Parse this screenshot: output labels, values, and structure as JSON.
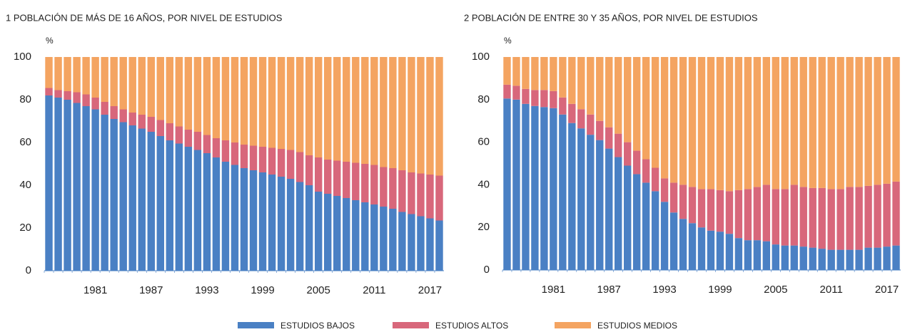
{
  "chart_data": [
    {
      "type": "stacked_bar",
      "title": "1  POBLACIÓN DE MÁS DE 16 AÑOS, POR NIVEL DE ESTUDIOS",
      "y_unit": "%",
      "categories": [
        null,
        null,
        null,
        null,
        null,
        "1981",
        null,
        null,
        null,
        null,
        null,
        "1987",
        null,
        null,
        null,
        null,
        null,
        "1993",
        null,
        null,
        null,
        null,
        null,
        "1999",
        null,
        null,
        null,
        null,
        null,
        "2005",
        null,
        null,
        null,
        null,
        null,
        "2011",
        null,
        null,
        null,
        null,
        null,
        "2017",
        null
      ],
      "ylim": [
        0,
        100
      ],
      "yticks": [
        0,
        20,
        40,
        60,
        80,
        100
      ],
      "series": [
        {
          "name": "ESTUDIOS BAJOS",
          "color": "#4a80c4",
          "values": [
            82,
            81,
            80,
            78.5,
            77,
            75.5,
            73,
            71,
            69.5,
            68,
            66.5,
            65,
            63,
            61,
            59.5,
            58,
            56.5,
            55,
            53,
            51,
            49.5,
            48,
            47,
            46,
            45,
            44,
            43,
            41.5,
            40,
            37,
            36,
            35,
            34,
            33,
            32,
            31,
            30,
            29,
            27.5,
            26.5,
            25.5,
            24.5,
            23.5
          ]
        },
        {
          "name": "ESTUDIOS ALTOS",
          "color": "#d8677b",
          "values": [
            3.5,
            3.5,
            4,
            5,
            5.5,
            5.5,
            6,
            6,
            6,
            6,
            6.5,
            7,
            7.5,
            8,
            8,
            8,
            8.5,
            8.5,
            9,
            10,
            10.5,
            11,
            11.5,
            12,
            12.5,
            13,
            13.5,
            14,
            14,
            16,
            16,
            16.5,
            17,
            17.5,
            18,
            18.5,
            18.5,
            19,
            19.5,
            19.5,
            20,
            20.5,
            21
          ]
        },
        {
          "name": "ESTUDIOS MEDIOS",
          "color": "#f4a461",
          "values": [
            14.5,
            15.5,
            16,
            16.5,
            17.5,
            19,
            21,
            23,
            24.5,
            26,
            27,
            28,
            29.5,
            31,
            32.5,
            34,
            35,
            36.5,
            38,
            39,
            40,
            41,
            41.5,
            42,
            42.5,
            43,
            43.5,
            44.5,
            46,
            47,
            48,
            48.5,
            49,
            49.5,
            50,
            50.5,
            51.5,
            52,
            53,
            54,
            54.5,
            55,
            55.5
          ]
        }
      ]
    },
    {
      "type": "stacked_bar",
      "title": "2  POBLACIÓN DE ENTRE 30 Y 35 AÑOS, POR NIVEL DE ESTUDIOS",
      "y_unit": "%",
      "categories": [
        null,
        null,
        null,
        null,
        null,
        "1981",
        null,
        null,
        null,
        null,
        null,
        "1987",
        null,
        null,
        null,
        null,
        null,
        "1993",
        null,
        null,
        null,
        null,
        null,
        "1999",
        null,
        null,
        null,
        null,
        null,
        "2005",
        null,
        null,
        null,
        null,
        null,
        "2011",
        null,
        null,
        null,
        null,
        null,
        "2017",
        null
      ],
      "ylim": [
        0,
        100
      ],
      "yticks": [
        0,
        20,
        40,
        60,
        80,
        100
      ],
      "series": [
        {
          "color": "#4a80c4",
          "values": [
            80.5,
            80,
            78,
            77,
            76.5,
            76,
            73,
            69,
            66.5,
            63.5,
            61,
            57,
            53,
            49,
            45,
            41,
            37,
            32,
            27,
            24,
            22,
            20,
            18.5,
            18,
            17,
            15,
            14,
            14,
            13.5,
            12,
            11.5,
            11.5,
            11,
            10.5,
            10,
            9.5,
            9.5,
            9.5,
            9.5,
            10.5,
            10.5,
            11,
            11.5
          ]
        },
        {
          "color": "#d8677b",
          "values": [
            6.5,
            6.5,
            7,
            7.5,
            8,
            8,
            8,
            9,
            9,
            9.5,
            9,
            10,
            11,
            11,
            11,
            11,
            11,
            11,
            14,
            16,
            17,
            18,
            19.5,
            19.5,
            20,
            22.5,
            24,
            25,
            26.5,
            26,
            26.5,
            28.5,
            28,
            28,
            28.5,
            28.5,
            28.5,
            29.5,
            29.5,
            29,
            29.5,
            29.5,
            30
          ]
        },
        {
          "color": "#f4a461",
          "values": [
            13,
            13.5,
            15,
            15.5,
            15.5,
            16,
            19,
            22,
            24.5,
            27,
            30,
            33,
            36,
            40,
            44,
            48,
            52,
            57,
            59,
            60,
            61,
            62,
            62,
            62.5,
            63,
            62.5,
            62,
            61,
            60,
            62,
            62,
            60,
            61,
            61.5,
            61.5,
            62,
            62,
            61,
            61,
            60.5,
            60,
            59.5,
            58.5
          ]
        }
      ]
    }
  ]
}
